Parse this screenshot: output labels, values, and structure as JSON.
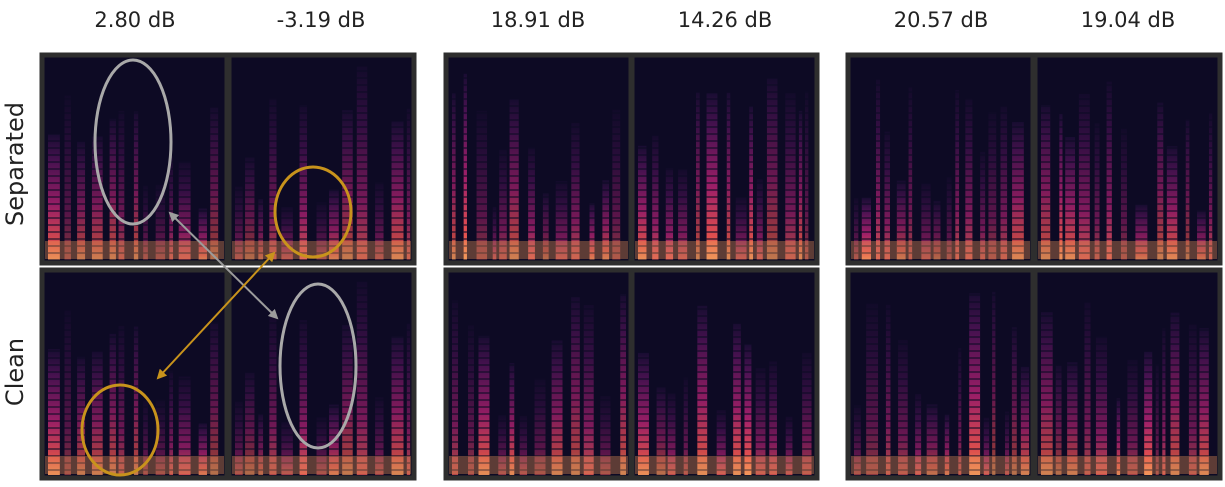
{
  "column_titles": [
    "2.80 dB",
    "-3.19 dB",
    "18.91 dB",
    "14.26 dB",
    "20.57 dB",
    "19.04 dB"
  ],
  "row_labels": [
    "Separated",
    "Clean"
  ],
  "colors": {
    "background_dark": "#0d0a24",
    "frame": "#2e2e2e",
    "highlight_gray": "#a9a9a9",
    "highlight_gold": "#c8931c",
    "spectrogram_hot": "#f37a4a",
    "spectrogram_mid": "#b3236b"
  },
  "annotations": [
    {
      "type": "ellipse",
      "color": "highlight_gray",
      "panel": "separated-col1"
    },
    {
      "type": "ellipse",
      "color": "highlight_gold",
      "panel": "separated-col2"
    },
    {
      "type": "ellipse",
      "color": "highlight_gold",
      "panel": "clean-col1"
    },
    {
      "type": "ellipse",
      "color": "highlight_gray",
      "panel": "clean-col2"
    },
    {
      "type": "double-arrow",
      "color": "highlight_gray",
      "from": "separated-col1",
      "to": "clean-col2"
    },
    {
      "type": "double-arrow",
      "color": "highlight_gold",
      "from": "separated-col2",
      "to": "clean-col1"
    }
  ]
}
